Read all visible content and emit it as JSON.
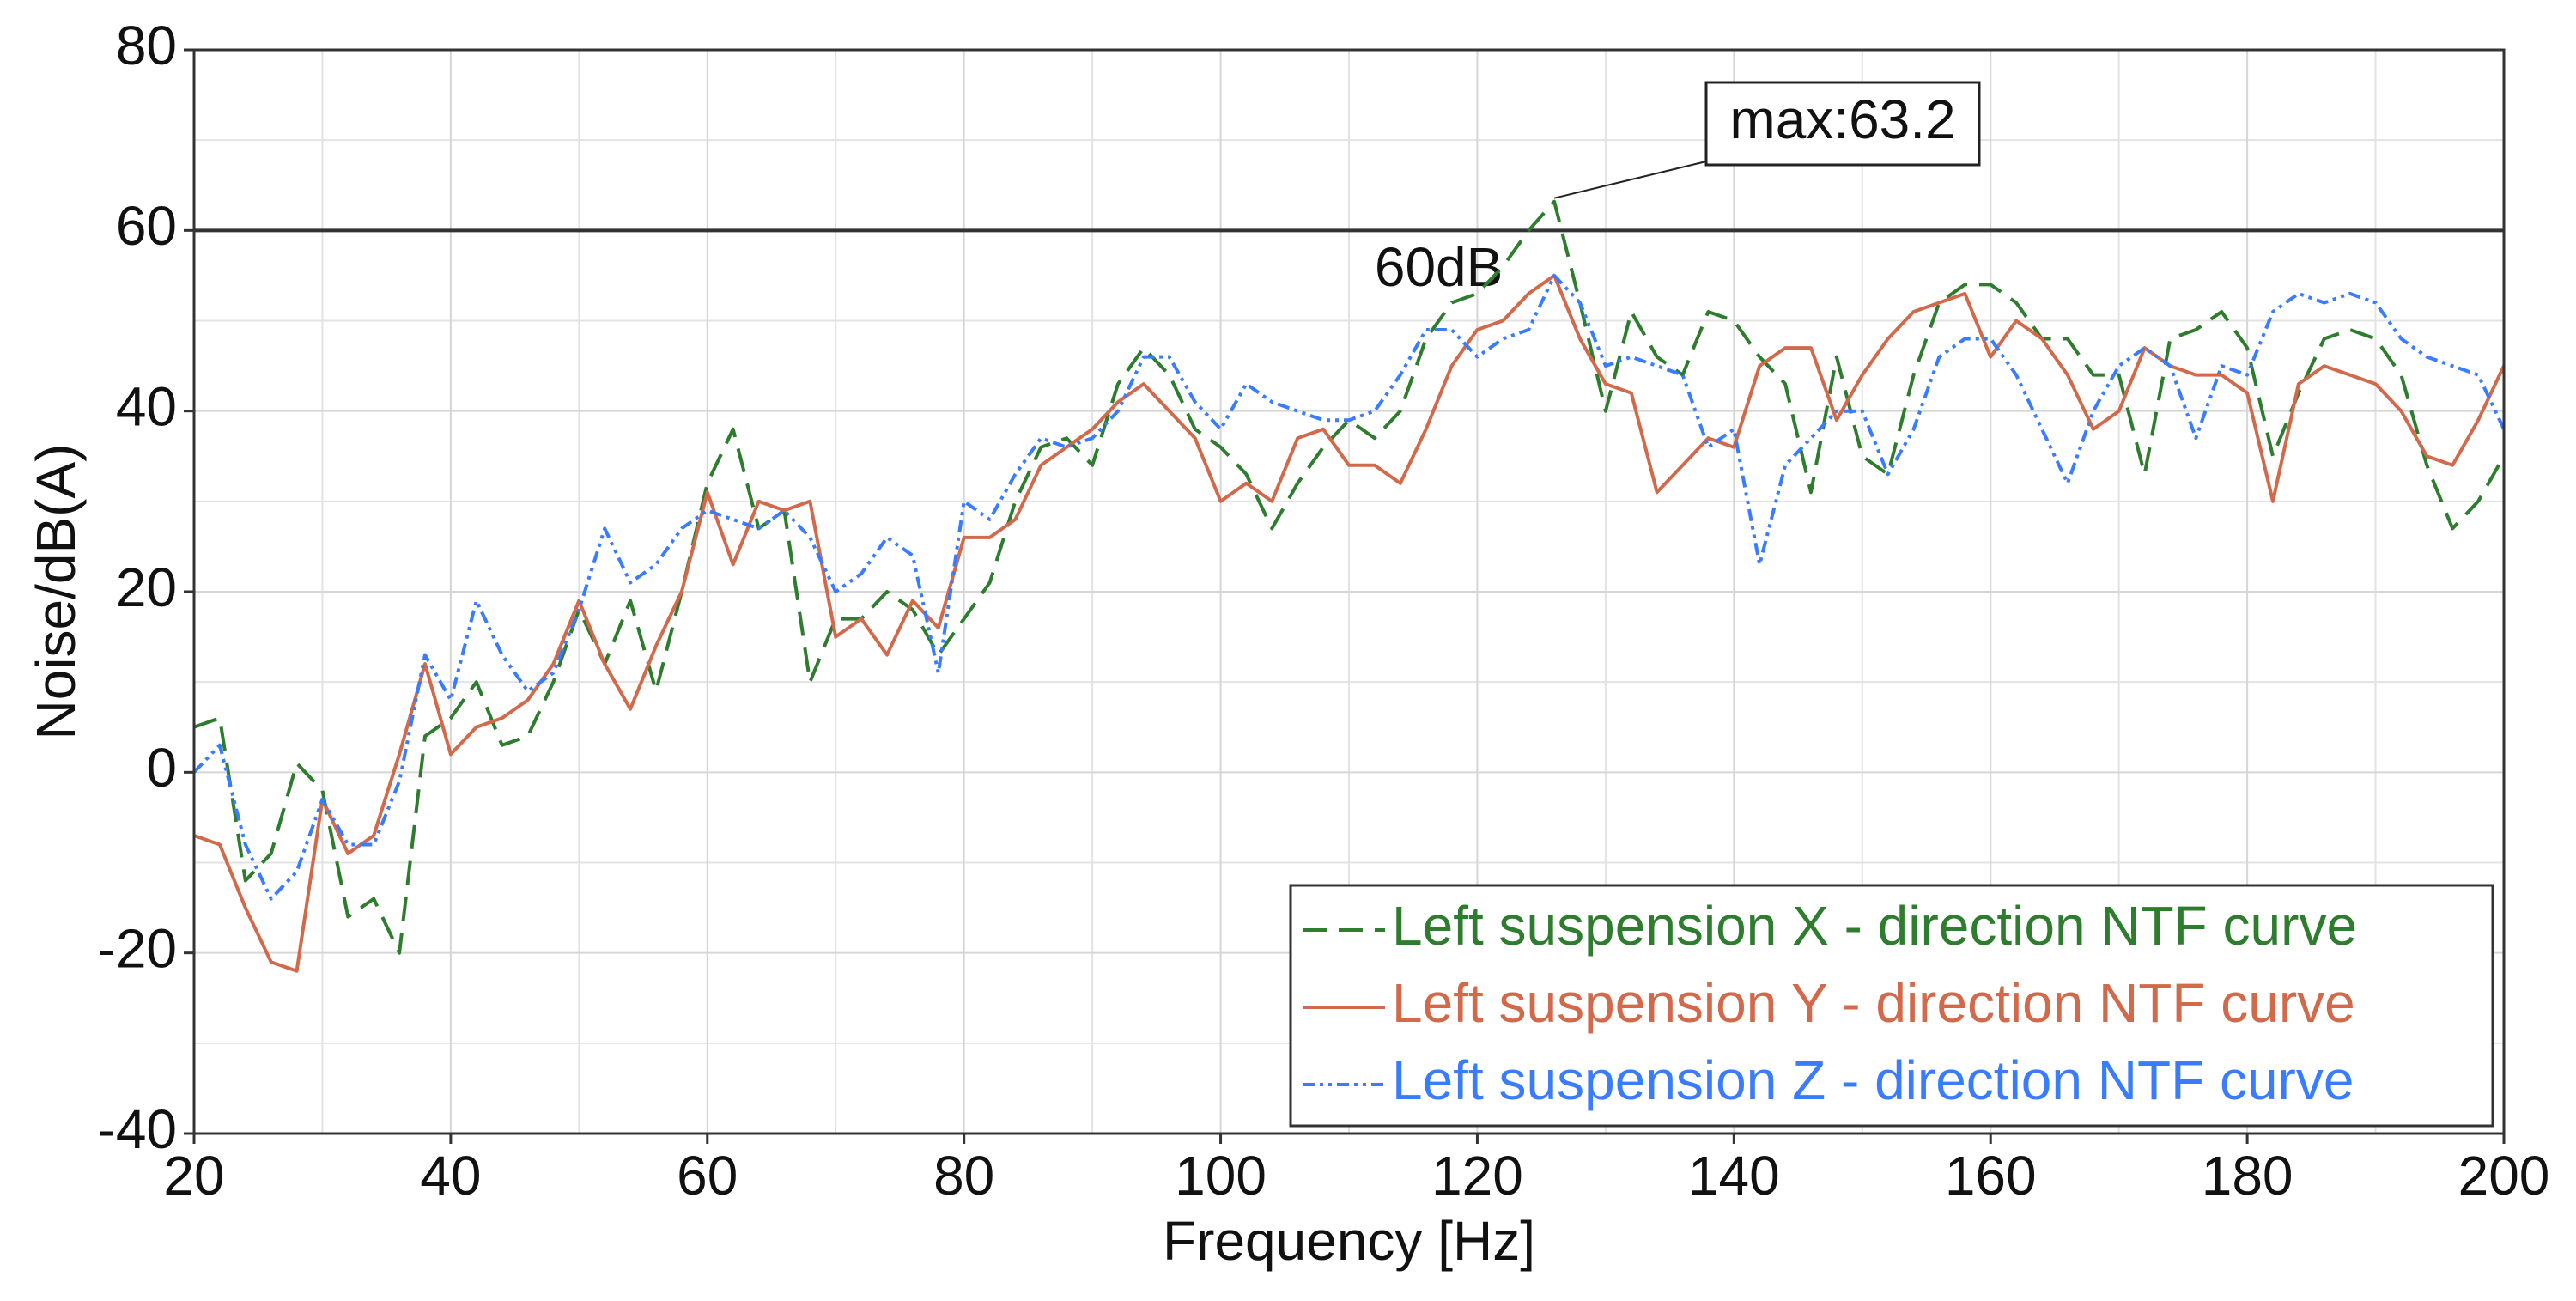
{
  "chart_data": {
    "type": "line",
    "x_label": "Frequency [Hz]",
    "y_label": "Noise/dB(A)",
    "xlim": [
      20,
      200
    ],
    "ylim": [
      -40,
      80
    ],
    "xticks": [
      20,
      40,
      60,
      80,
      100,
      120,
      140,
      160,
      180,
      200
    ],
    "yticks": [
      -40,
      -20,
      0,
      20,
      40,
      60,
      80
    ],
    "grid": true,
    "minor_grid": true,
    "legend": "lower right",
    "reference_line": {
      "value": 60,
      "label": "60dB",
      "color": "#333333"
    },
    "annotation": {
      "text": "max:63.2",
      "series": 0,
      "x": 126,
      "y": 63.2
    },
    "x": [
      20,
      22,
      24,
      26,
      28,
      30,
      32,
      34,
      36,
      38,
      40,
      42,
      44,
      46,
      48,
      50,
      52,
      54,
      56,
      58,
      60,
      62,
      64,
      66,
      68,
      70,
      72,
      74,
      76,
      78,
      80,
      82,
      84,
      86,
      88,
      90,
      92,
      94,
      96,
      98,
      100,
      102,
      104,
      106,
      108,
      110,
      112,
      114,
      116,
      118,
      120,
      122,
      124,
      126,
      128,
      130,
      132,
      134,
      136,
      138,
      140,
      142,
      144,
      146,
      148,
      150,
      152,
      154,
      156,
      158,
      160,
      162,
      164,
      166,
      168,
      170,
      172,
      174,
      176,
      178,
      180,
      182,
      184,
      186,
      188,
      190,
      192,
      194,
      196,
      198,
      200
    ],
    "series": [
      {
        "name": "Left suspension X - direction NTF curve",
        "color": "#2e7d2e",
        "dash": "28,14",
        "values": [
          5,
          6,
          -12,
          -9,
          1,
          -2,
          -16,
          -14,
          -20,
          4,
          6,
          10,
          3,
          4,
          10,
          18,
          12,
          19,
          9,
          20,
          32,
          38,
          27,
          29,
          10,
          17,
          17,
          20,
          18,
          13,
          17,
          21,
          30,
          36,
          37,
          34,
          43,
          47,
          44,
          38,
          36,
          33,
          27,
          32,
          36,
          39,
          37,
          40,
          48,
          52,
          53,
          56,
          60,
          63.2,
          52,
          40,
          51,
          46,
          44,
          51,
          50,
          46,
          43,
          31,
          46,
          35,
          33,
          44,
          52,
          54,
          54,
          52,
          48,
          48,
          44,
          44,
          33,
          48,
          49,
          51,
          47,
          35,
          42,
          48,
          49,
          48,
          44,
          34,
          27,
          30,
          35
        ]
      },
      {
        "name": "Left suspension Y - direction NTF curve",
        "color": "#d2694a",
        "dash": "none",
        "values": [
          -7,
          -8,
          -15,
          -21,
          -22,
          -3,
          -9,
          -7,
          2,
          12,
          2,
          5,
          6,
          8,
          12,
          19,
          12,
          7,
          14,
          20,
          31,
          23,
          30,
          29,
          30,
          15,
          17,
          13,
          19,
          16,
          26,
          26,
          28,
          34,
          36,
          38,
          41,
          43,
          40,
          37,
          30,
          32,
          30,
          37,
          38,
          34,
          34,
          32,
          38,
          45,
          49,
          50,
          53,
          55,
          48,
          43,
          42,
          31,
          34,
          37,
          36,
          45,
          47,
          47,
          39,
          44,
          48,
          51,
          52,
          53,
          46,
          50,
          48,
          44,
          38,
          40,
          47,
          45,
          44,
          44,
          42,
          30,
          43,
          45,
          44,
          43,
          40,
          35,
          34,
          39,
          45
        ]
      },
      {
        "name": "Left suspension Z - direction NTF curve",
        "color": "#3a7cff",
        "dash": "14,6,4,6,4,6",
        "values": [
          0,
          3,
          -8,
          -14,
          -11,
          -3,
          -8,
          -8,
          -1,
          13,
          8,
          19,
          13,
          9,
          11,
          18,
          27,
          21,
          23,
          27,
          29,
          28,
          27,
          29,
          26,
          20,
          22,
          26,
          24,
          11,
          30,
          28,
          33,
          37,
          36,
          37,
          40,
          46,
          46,
          41,
          38,
          43,
          41,
          40,
          39,
          39,
          40,
          44,
          49,
          49,
          46,
          48,
          49,
          55,
          52,
          45,
          46,
          45,
          44,
          36,
          38,
          23,
          34,
          37,
          40,
          40,
          33,
          38,
          46,
          48,
          48,
          44,
          38,
          32,
          40,
          45,
          47,
          45,
          37,
          45,
          44,
          51,
          53,
          52,
          53,
          52,
          48,
          46,
          45,
          44,
          38
        ]
      }
    ]
  }
}
